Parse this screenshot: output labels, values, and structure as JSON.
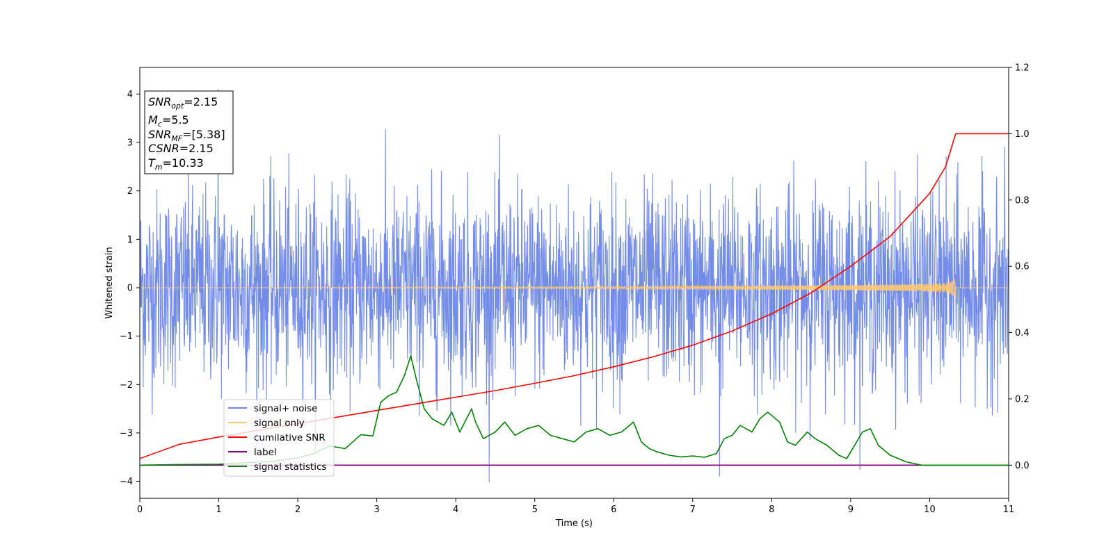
{
  "chart_data": {
    "type": "line",
    "xlabel": "Time (s)",
    "ylabel": "Whitened strain",
    "xlim": [
      0,
      11
    ],
    "ylim": [
      -4.35,
      4.55
    ],
    "y2lim": [
      -0.1,
      1.2
    ],
    "x_ticks": [
      0,
      1,
      2,
      3,
      4,
      5,
      6,
      7,
      8,
      9,
      10,
      11
    ],
    "y_ticks": [
      -4,
      -3,
      -2,
      -1,
      0,
      1,
      2,
      3,
      4
    ],
    "y2_ticks": [
      "0.0",
      "0.2",
      "0.4",
      "0.6",
      "0.8",
      "1.0",
      "1.2"
    ],
    "grid": false,
    "legend_position": "lower-left",
    "info_box": {
      "snr_opt": {
        "sym": "SNR",
        "sub": "opt",
        "value": "=2.15"
      },
      "mc": {
        "sym": "M",
        "sub": "c",
        "value": "=5.5"
      },
      "snr_mf": {
        "sym": "SNR",
        "sub": "MF",
        "value": "=[5.38]"
      },
      "csnr": {
        "sym": "CSNR",
        "value": "=2.15"
      },
      "tm": {
        "sym": "T",
        "sub": "m",
        "value": "=10.33"
      }
    },
    "series": [
      {
        "name": "signal+ noise",
        "axis": "left",
        "color": "#6b86e6",
        "kind": "gaussian-noise",
        "std": 1.0,
        "t_range": [
          0,
          11
        ],
        "samples": 2600,
        "extreme_max": 4.1,
        "extreme_min": -3.9
      },
      {
        "name": "signal only",
        "axis": "left",
        "color": "#ffc870",
        "kind": "chirp",
        "merger_time": 10.33,
        "peak_amplitude": 0.27
      },
      {
        "name": "cumilative SNR",
        "axis": "right",
        "color": "#ff0000",
        "x": [
          0,
          0.5,
          1,
          1.5,
          2,
          2.5,
          3,
          3.5,
          4,
          4.5,
          5,
          5.5,
          6,
          6.5,
          7,
          7.5,
          8,
          8.5,
          9,
          9.5,
          10,
          10.2,
          10.33,
          11
        ],
        "values": [
          0.02,
          0.063,
          0.085,
          0.105,
          0.125,
          0.145,
          0.165,
          0.185,
          0.205,
          0.225,
          0.247,
          0.27,
          0.297,
          0.327,
          0.362,
          0.405,
          0.457,
          0.52,
          0.6,
          0.69,
          0.82,
          0.9,
          1.0,
          1.0
        ]
      },
      {
        "name": "label",
        "axis": "right",
        "color": "#800080",
        "x": [
          0,
          11
        ],
        "values": [
          0.0,
          0.0
        ]
      },
      {
        "name": "signal statistics",
        "axis": "right",
        "color": "#008000",
        "x": [
          0,
          0.5,
          1,
          1.3,
          1.7,
          2,
          2.2,
          2.4,
          2.6,
          2.8,
          2.95,
          3.05,
          3.15,
          3.25,
          3.35,
          3.43,
          3.5,
          3.6,
          3.7,
          3.85,
          3.95,
          4.05,
          4.2,
          4.25,
          4.35,
          4.5,
          4.62,
          4.75,
          4.9,
          5.05,
          5.2,
          5.35,
          5.5,
          5.65,
          5.8,
          5.95,
          6.1,
          6.25,
          6.35,
          6.45,
          6.55,
          6.7,
          6.85,
          7.0,
          7.15,
          7.3,
          7.4,
          7.5,
          7.6,
          7.75,
          7.85,
          7.95,
          8.1,
          8.2,
          8.3,
          8.45,
          8.55,
          8.7,
          8.85,
          8.95,
          9.05,
          9.15,
          9.25,
          9.35,
          9.5,
          9.7,
          9.9,
          10.2,
          11
        ],
        "values": [
          0.0,
          0.002,
          0.003,
          0.007,
          0.012,
          0.022,
          0.035,
          0.058,
          0.05,
          0.092,
          0.088,
          0.19,
          0.21,
          0.22,
          0.27,
          0.33,
          0.26,
          0.17,
          0.14,
          0.12,
          0.16,
          0.1,
          0.17,
          0.13,
          0.08,
          0.1,
          0.13,
          0.09,
          0.11,
          0.12,
          0.09,
          0.08,
          0.07,
          0.1,
          0.11,
          0.09,
          0.1,
          0.13,
          0.07,
          0.05,
          0.04,
          0.03,
          0.025,
          0.028,
          0.024,
          0.035,
          0.08,
          0.09,
          0.12,
          0.1,
          0.14,
          0.16,
          0.13,
          0.07,
          0.06,
          0.1,
          0.08,
          0.06,
          0.03,
          0.02,
          0.06,
          0.1,
          0.11,
          0.06,
          0.03,
          0.01,
          0.0,
          0.0,
          0.0
        ]
      }
    ]
  }
}
